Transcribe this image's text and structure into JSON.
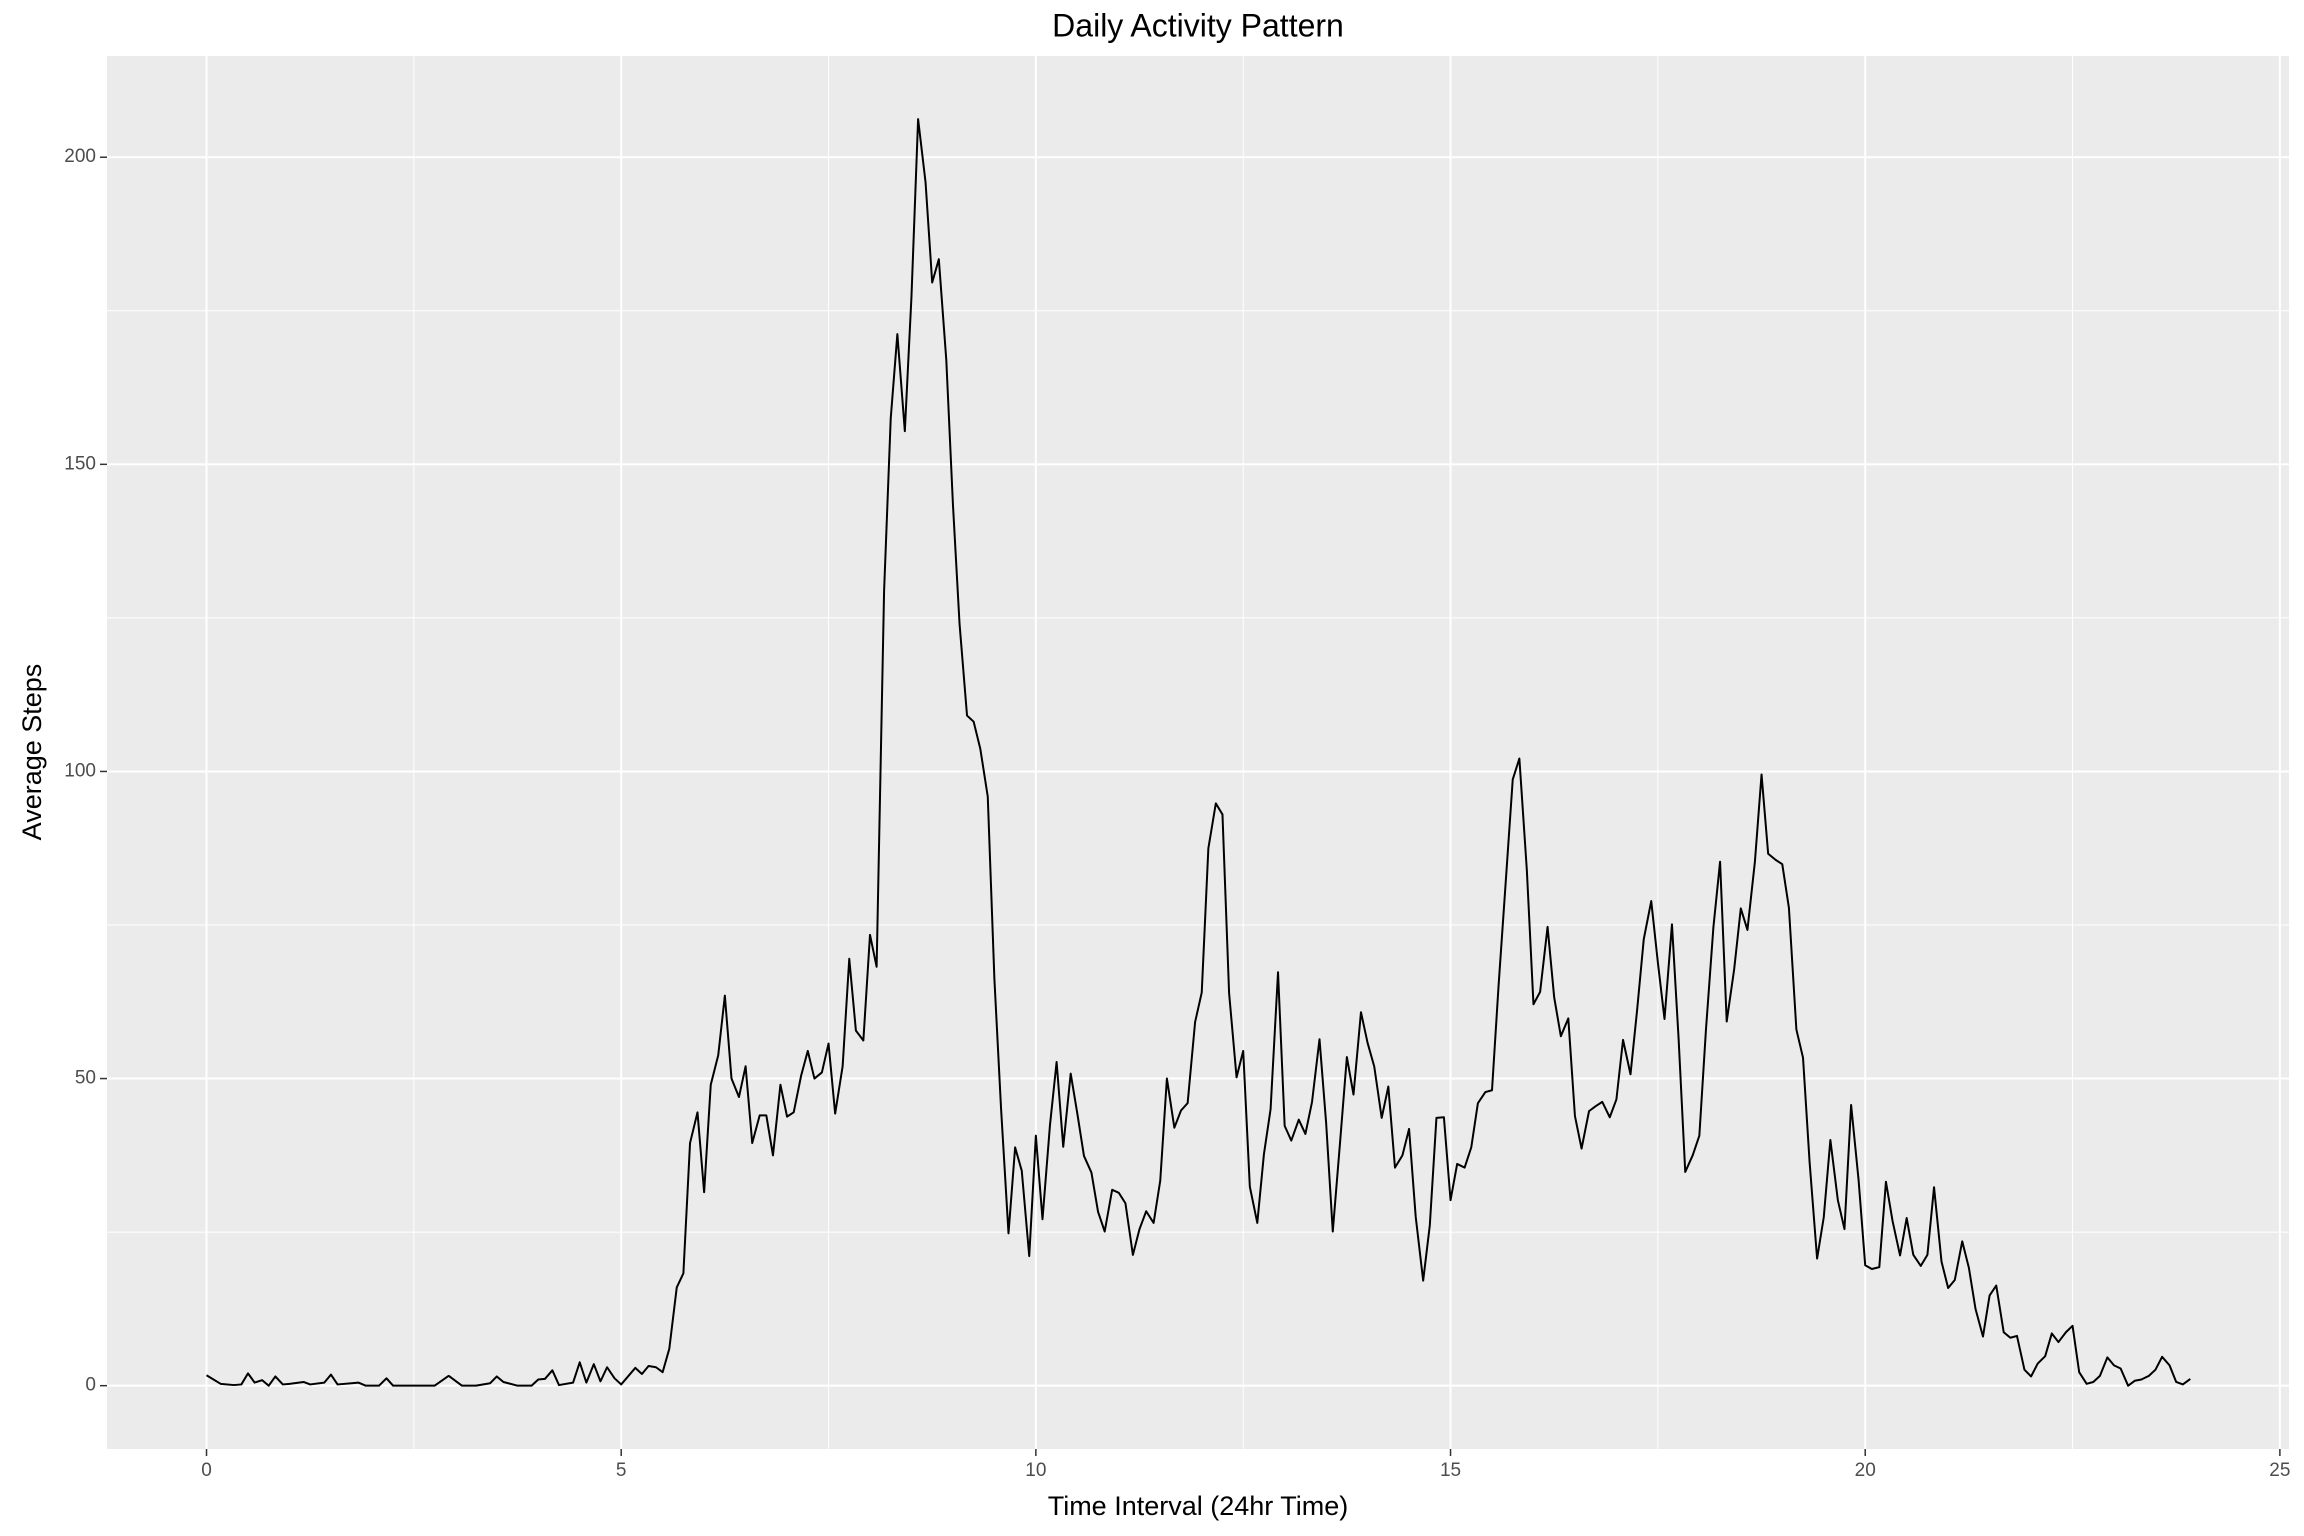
{
  "chart_data": {
    "type": "line",
    "title": "Daily Activity Pattern",
    "x_label": "Time Interval (24hr Time)",
    "y_label": "Average Steps",
    "xlim": [
      -1.2,
      25.11
    ],
    "ylim": [
      -10.31,
      216.48
    ],
    "xticks": [
      0,
      5,
      10,
      15,
      20,
      25
    ],
    "yticks": [
      0,
      50,
      100,
      150,
      200
    ],
    "grid": true,
    "color": "#000000",
    "x": [
      0,
      0.17,
      0.33,
      0.42,
      0.5,
      0.58,
      0.67,
      0.75,
      0.83,
      0.92,
      1.0,
      1.17,
      1.25,
      1.42,
      1.5,
      1.58,
      1.75,
      1.83,
      1.92,
      2.08,
      2.17,
      2.25,
      2.5,
      2.75,
      2.92,
      3.08,
      3.25,
      3.42,
      3.5,
      3.58,
      3.75,
      3.92,
      4.0,
      4.08,
      4.17,
      4.25,
      4.42,
      4.5,
      4.58,
      4.67,
      4.75,
      4.83,
      4.92,
      5.0,
      5.17,
      5.25,
      5.33,
      5.42,
      5.5,
      5.58,
      5.67,
      5.75,
      5.83,
      5.92,
      6.0,
      6.08,
      6.17,
      6.25,
      6.33,
      6.42,
      6.5,
      6.58,
      6.67,
      6.75,
      6.83,
      6.92,
      7.0,
      7.08,
      7.17,
      7.25,
      7.33,
      7.42,
      7.5,
      7.58,
      7.67,
      7.75,
      7.83,
      7.92,
      8.0,
      8.08,
      8.17,
      8.25,
      8.33,
      8.42,
      8.5,
      8.58,
      8.67,
      8.75,
      8.83,
      8.92,
      9.0,
      9.08,
      9.17,
      9.25,
      9.33,
      9.42,
      9.5,
      9.58,
      9.67,
      9.75,
      9.83,
      9.92,
      10.0,
      10.08,
      10.17,
      10.25,
      10.33,
      10.42,
      10.5,
      10.58,
      10.67,
      10.75,
      10.83,
      10.92,
      11.0,
      11.08,
      11.17,
      11.25,
      11.33,
      11.42,
      11.5,
      11.58,
      11.67,
      11.75,
      11.83,
      11.92,
      12.0,
      12.08,
      12.17,
      12.25,
      12.33,
      12.42,
      12.5,
      12.58,
      12.67,
      12.75,
      12.83,
      12.92,
      13.0,
      13.08,
      13.17,
      13.25,
      13.33,
      13.42,
      13.5,
      13.58,
      13.67,
      13.75,
      13.83,
      13.92,
      14.0,
      14.08,
      14.17,
      14.25,
      14.33,
      14.42,
      14.5,
      14.58,
      14.67,
      14.75,
      14.83,
      14.92,
      15.0,
      15.08,
      15.17,
      15.25,
      15.33,
      15.42,
      15.5,
      15.58,
      15.67,
      15.75,
      15.83,
      15.92,
      16.0,
      16.08,
      16.17,
      16.25,
      16.33,
      16.42,
      16.5,
      16.58,
      16.67,
      16.75,
      16.83,
      16.92,
      17.0,
      17.08,
      17.17,
      17.25,
      17.33,
      17.42,
      17.5,
      17.58,
      17.67,
      17.75,
      17.83,
      17.92,
      18.0,
      18.08,
      18.17,
      18.25,
      18.33,
      18.42,
      18.5,
      18.58,
      18.67,
      18.75,
      18.83,
      18.92,
      19.0,
      19.08,
      19.17,
      19.25,
      19.33,
      19.42,
      19.5,
      19.58,
      19.67,
      19.75,
      19.83,
      19.92,
      20.0,
      20.08,
      20.17,
      20.25,
      20.33,
      20.42,
      20.5,
      20.58,
      20.67,
      20.75,
      20.83,
      20.92,
      21.0,
      21.08,
      21.17,
      21.25,
      21.33,
      21.42,
      21.5,
      21.58,
      21.67,
      21.75,
      21.83,
      21.92,
      22.0,
      22.08,
      22.17,
      22.25,
      22.33,
      22.42,
      22.5,
      22.58,
      22.67,
      22.75,
      22.83,
      22.92,
      23.0,
      23.08,
      23.17,
      23.25,
      23.33,
      23.42,
      23.5,
      23.58,
      23.67,
      23.75,
      23.83,
      23.92
    ],
    "values": [
      1.7,
      0.3,
      0.1,
      0.2,
      2,
      0.5,
      0.9,
      0,
      1.5,
      0.2,
      0.3,
      0.6,
      0.2,
      0.5,
      1.8,
      0.2,
      0.4,
      0.5,
      0,
      0,
      1.2,
      0,
      0,
      0,
      1.6,
      0,
      0,
      0.4,
      1.5,
      0.6,
      0,
      0,
      1,
      1.1,
      2.5,
      0.1,
      0.5,
      3.8,
      0.5,
      3.5,
      0.7,
      3,
      1.2,
      0.2,
      2.9,
      1.9,
      3.2,
      3,
      2.2,
      6,
      16,
      18.3,
      39.5,
      44.5,
      31.5,
      49,
      53.8,
      63.5,
      50,
      47,
      52,
      39.5,
      44,
      44,
      37.5,
      49,
      43.8,
      44.5,
      50.5,
      54.5,
      50,
      51,
      55.7,
      44.3,
      52,
      69.5,
      57.8,
      56.2,
      73.4,
      68.2,
      129.4,
      157.5,
      171.2,
      155.4,
      177.3,
      206.2,
      195.9,
      179.6,
      183.4,
      167,
      143.5,
      124,
      109.1,
      108.1,
      103.7,
      95.9,
      66.2,
      45.2,
      24.8,
      38.8,
      34.98,
      21.1,
      40.7,
      27.1,
      42.4,
      52.7,
      38.9,
      50.8,
      44.3,
      37.4,
      34.7,
      28.3,
      25.1,
      31.9,
      31.4,
      29.7,
      21.3,
      25.5,
      28.4,
      26.5,
      33.4,
      50,
      42,
      44.8,
      46,
      59.2,
      64,
      87.5,
      94.8,
      93,
      63.9,
      50.2,
      54.5,
      32.4,
      26.5,
      37.7,
      45,
      67.3,
      42.3,
      39.9,
      43.3,
      40.98,
      46.2,
      56.4,
      42.8,
      25.1,
      39.96,
      53.5,
      47.4,
      60.8,
      55.8,
      51.96,
      43.6,
      48.7,
      35.5,
      37.5,
      41.8,
      27.5,
      17.1,
      26.1,
      43.6,
      43.7,
      30.2,
      36.1,
      35.5,
      38.8,
      46,
      47.8,
      48.1,
      65.3,
      82.9,
      98.7,
      102.1,
      83.96,
      62.1,
      64.1,
      74.7,
      63.2,
      56.9,
      59.8,
      43.9,
      38.6,
      44.7,
      45.5,
      46.2,
      43.7,
      46.6,
      56.3,
      50.7,
      61.2,
      72.7,
      78.9,
      68.9,
      59.7,
      75.1,
      56.5,
      34.8,
      37.5,
      40.7,
      58,
      74.7,
      85.3,
      59.3,
      67.8,
      77.7,
      74.2,
      85.3,
      99.5,
      86.6,
      85.6,
      84.9,
      77.8,
      58,
      53.4,
      36.3,
      20.7,
      27.4,
      40,
      30.2,
      25.5,
      45.7,
      33.5,
      19.6,
      19,
      19.3,
      33.2,
      26.8,
      21.2,
      27.3,
      21.3,
      19.5,
      21.3,
      32.3,
      20.2,
      15.9,
      17.2,
      23.5,
      19.2,
      12.5,
      8,
      14.7,
      16.3,
      8.7,
      7.8,
      8.1,
      2.6,
      1.5,
      3.6,
      4.8,
      8.5,
      7.1,
      8.7,
      9.75,
      2.2,
      0.3,
      0.6,
      1.6,
      4.6,
      3.3,
      2.8,
      0,
      0.8,
      1,
      1.6,
      2.6,
      4.7,
      3.3,
      0.6,
      0.2,
      1.1
    ]
  }
}
